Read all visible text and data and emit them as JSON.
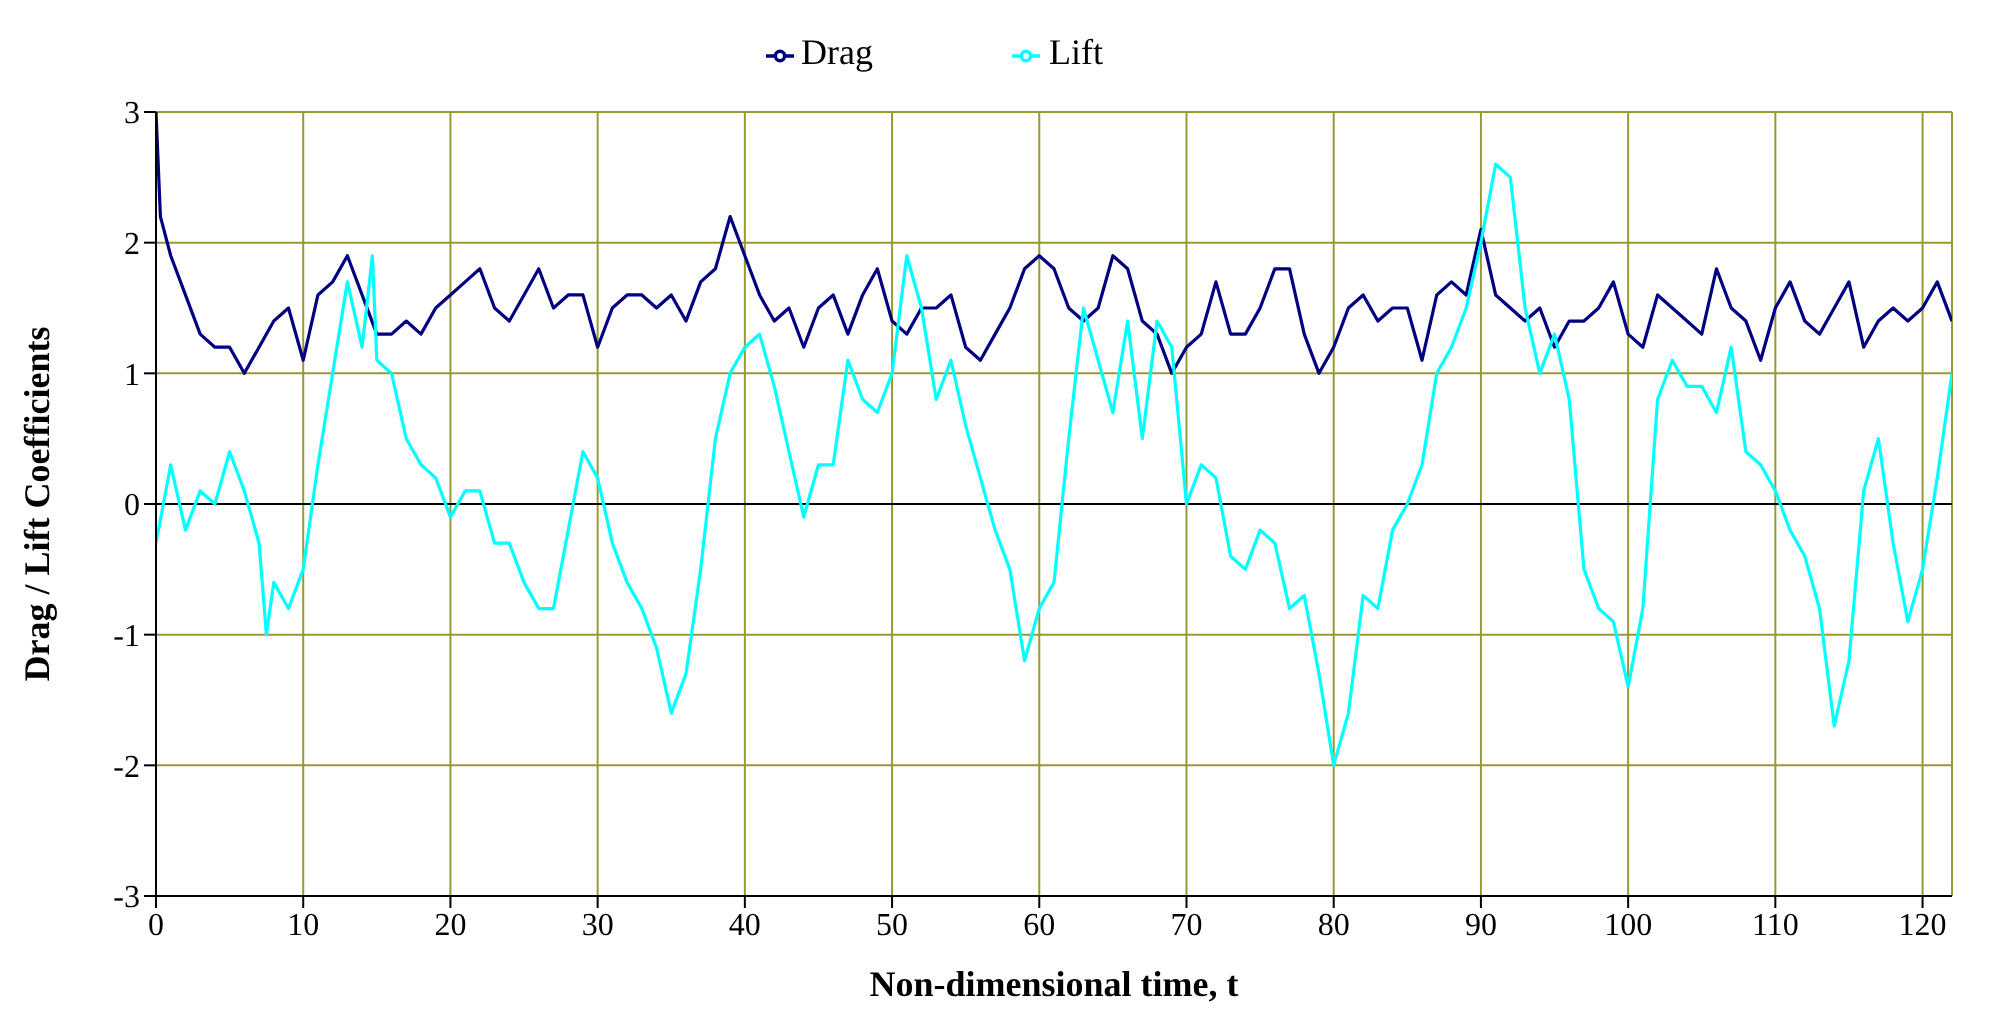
{
  "chart_data": {
    "type": "line",
    "xlabel": "Non-dimensional time, t",
    "ylabel": "Drag / Lift Coefficients",
    "xlim": [
      0,
      122
    ],
    "xticks": [
      0,
      10,
      20,
      30,
      40,
      50,
      60,
      70,
      80,
      90,
      100,
      110,
      120
    ],
    "ylim": [
      -3,
      3
    ],
    "yticks": [
      -3,
      -2,
      -1,
      0,
      1,
      2,
      3
    ],
    "grid": true,
    "legend": "top",
    "marker": "none",
    "line_style": "solid",
    "ref_lines": [
      {
        "axis": "y",
        "value": 0,
        "color": "#000000"
      }
    ],
    "series": [
      {
        "name": "Drag",
        "color": "#000080",
        "x": [
          0,
          0.3,
          1,
          2,
          3,
          4,
          5,
          6,
          7,
          8,
          9,
          10,
          11,
          12,
          13,
          14,
          15,
          16,
          17,
          18,
          19,
          20,
          21,
          22,
          23,
          24,
          25,
          26,
          27,
          28,
          29,
          30,
          31,
          32,
          33,
          34,
          35,
          36,
          37,
          38,
          39,
          40,
          41,
          42,
          43,
          44,
          45,
          46,
          47,
          48,
          49,
          50,
          51,
          52,
          53,
          54,
          55,
          56,
          57,
          58,
          59,
          60,
          61,
          62,
          63,
          64,
          65,
          66,
          67,
          68,
          69,
          70,
          71,
          72,
          73,
          74,
          75,
          76,
          77,
          78,
          79,
          80,
          81,
          82,
          83,
          84,
          85,
          86,
          87,
          88,
          89,
          90,
          91,
          92,
          93,
          94,
          95,
          96,
          97,
          98,
          99,
          100,
          101,
          102,
          103,
          104,
          105,
          106,
          107,
          108,
          109,
          110,
          111,
          112,
          113,
          114,
          115,
          116,
          117,
          118,
          119,
          120,
          121,
          122
        ],
        "values": [
          3.0,
          2.2,
          1.9,
          1.6,
          1.3,
          1.2,
          1.2,
          1.0,
          1.2,
          1.4,
          1.5,
          1.1,
          1.6,
          1.7,
          1.9,
          1.6,
          1.3,
          1.3,
          1.4,
          1.3,
          1.5,
          1.6,
          1.7,
          1.8,
          1.5,
          1.4,
          1.6,
          1.8,
          1.5,
          1.6,
          1.6,
          1.2,
          1.5,
          1.6,
          1.6,
          1.5,
          1.6,
          1.4,
          1.7,
          1.8,
          2.2,
          1.9,
          1.6,
          1.4,
          1.5,
          1.2,
          1.5,
          1.6,
          1.3,
          1.6,
          1.8,
          1.4,
          1.3,
          1.5,
          1.5,
          1.6,
          1.2,
          1.1,
          1.3,
          1.5,
          1.8,
          1.9,
          1.8,
          1.5,
          1.4,
          1.5,
          1.9,
          1.8,
          1.4,
          1.3,
          1.0,
          1.2,
          1.3,
          1.7,
          1.3,
          1.3,
          1.5,
          1.8,
          1.8,
          1.3,
          1.0,
          1.2,
          1.5,
          1.6,
          1.4,
          1.5,
          1.5,
          1.1,
          1.6,
          1.7,
          1.6,
          2.1,
          1.6,
          1.5,
          1.4,
          1.5,
          1.2,
          1.4,
          1.4,
          1.5,
          1.7,
          1.3,
          1.2,
          1.6,
          1.5,
          1.4,
          1.3,
          1.8,
          1.5,
          1.4,
          1.1,
          1.5,
          1.7,
          1.4,
          1.3,
          1.5,
          1.7,
          1.2,
          1.4,
          1.5,
          1.4,
          1.5,
          1.7,
          1.4
        ]
      },
      {
        "name": "Lift",
        "color": "#00ffff",
        "x": [
          0,
          1,
          2,
          3,
          4,
          5,
          6,
          7,
          7.5,
          8,
          9,
          10,
          11,
          12,
          13,
          14,
          14.7,
          15,
          16,
          17,
          18,
          19,
          20,
          21,
          22,
          23,
          24,
          25,
          26,
          27,
          28,
          29,
          30,
          31,
          32,
          33,
          34,
          35,
          36,
          37,
          38,
          39,
          40,
          41,
          42,
          43,
          44,
          45,
          46,
          47,
          48,
          49,
          50,
          51,
          52,
          53,
          54,
          55,
          56,
          57,
          58,
          59,
          60,
          61,
          62,
          63,
          64,
          65,
          66,
          67,
          68,
          69,
          70,
          71,
          72,
          73,
          74,
          75,
          76,
          77,
          78,
          79,
          80,
          81,
          82,
          83,
          84,
          85,
          86,
          87,
          88,
          89,
          90,
          91,
          92,
          93,
          94,
          95,
          96,
          97,
          98,
          99,
          100,
          101,
          102,
          103,
          104,
          105,
          106,
          107,
          108,
          109,
          110,
          111,
          112,
          113,
          114,
          115,
          116,
          117,
          118,
          119,
          120,
          121,
          122
        ],
        "values": [
          -0.3,
          0.3,
          -0.2,
          0.1,
          0.0,
          0.4,
          0.1,
          -0.3,
          -1.0,
          -0.6,
          -0.8,
          -0.5,
          0.3,
          1.0,
          1.7,
          1.2,
          1.9,
          1.1,
          1.0,
          0.5,
          0.3,
          0.2,
          -0.1,
          0.1,
          0.1,
          -0.3,
          -0.3,
          -0.6,
          -0.8,
          -0.8,
          -0.2,
          0.4,
          0.2,
          -0.3,
          -0.6,
          -0.8,
          -1.1,
          -1.6,
          -1.3,
          -0.5,
          0.5,
          1.0,
          1.2,
          1.3,
          0.9,
          0.4,
          -0.1,
          0.3,
          0.3,
          1.1,
          0.8,
          0.7,
          1.0,
          1.9,
          1.5,
          0.8,
          1.1,
          0.6,
          0.2,
          -0.2,
          -0.5,
          -1.2,
          -0.8,
          -0.6,
          0.5,
          1.5,
          1.1,
          0.7,
          1.4,
          0.5,
          1.4,
          1.2,
          0.0,
          0.3,
          0.2,
          -0.4,
          -0.5,
          -0.2,
          -0.3,
          -0.8,
          -0.7,
          -1.3,
          -2.0,
          -1.6,
          -0.7,
          -0.8,
          -0.2,
          0.0,
          0.3,
          1.0,
          1.2,
          1.5,
          2.0,
          2.6,
          2.5,
          1.5,
          1.0,
          1.3,
          0.8,
          -0.5,
          -0.8,
          -0.9,
          -1.4,
          -0.8,
          0.8,
          1.1,
          0.9,
          0.9,
          0.7,
          1.2,
          0.4,
          0.3,
          0.1,
          -0.2,
          -0.4,
          -0.8,
          -1.7,
          -1.2,
          0.1,
          0.5,
          -0.3,
          -0.9,
          -0.5,
          0.2,
          1.0
        ]
      }
    ]
  }
}
